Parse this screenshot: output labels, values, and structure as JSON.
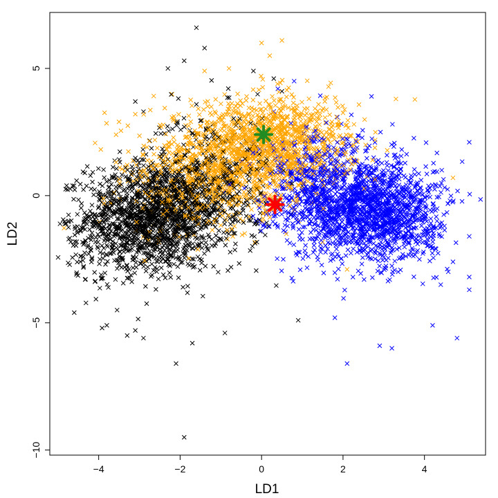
{
  "chart_data": {
    "type": "scatter",
    "title": "",
    "xlabel": "LD1",
    "ylabel": "LD2",
    "xlim": [
      -5.2,
      5.5
    ],
    "ylim": [
      -10.2,
      7.2
    ],
    "xticks": [
      -4,
      -2,
      0,
      2,
      4
    ],
    "yticks": [
      -10,
      -5,
      0,
      5
    ],
    "xtick_labels": [
      "−4",
      "−2",
      "0",
      "2",
      "4"
    ],
    "ytick_labels": [
      "−10",
      "−5",
      "0",
      "5"
    ],
    "grid": false,
    "legend": "none",
    "marker": "x",
    "series": [
      {
        "color": "#000000",
        "clusters": [
          {
            "center": [
              -2.6,
              -0.8
            ],
            "spread": [
              0.85,
              1.05
            ],
            "count": 1400
          },
          {
            "center": [
              -1.3,
              0.5
            ],
            "spread": [
              0.8,
              1.4
            ],
            "count": 450
          },
          {
            "center": [
              -3.6,
              -1.6
            ],
            "spread": [
              0.6,
              1.0
            ],
            "count": 200
          }
        ],
        "outliers": [
          [
            -1.6,
            6.6
          ],
          [
            -1.4,
            5.8
          ],
          [
            -2.3,
            5.0
          ],
          [
            -1.9,
            5.3
          ],
          [
            -0.2,
            4.9
          ],
          [
            -4.8,
            -1.1
          ],
          [
            -4.6,
            -4.6
          ],
          [
            -3.3,
            -5.5
          ],
          [
            -3.1,
            -5.3
          ],
          [
            -2.9,
            -5.6
          ],
          [
            -1.7,
            -5.8
          ],
          [
            -2.1,
            -6.6
          ],
          [
            -1.9,
            -9.5
          ],
          [
            -0.9,
            -5.4
          ],
          [
            0.9,
            -4.9
          ],
          [
            -3.1,
            3.7
          ],
          [
            -2.9,
            3.3
          ],
          [
            0.5,
            4.1
          ],
          [
            0.3,
            4.6
          ],
          [
            -3.8,
            -5.1
          ]
        ]
      },
      {
        "color": "#FFA500",
        "clusters": [
          {
            "center": [
              -0.4,
              1.6
            ],
            "spread": [
              1.15,
              1.0
            ],
            "count": 1100
          },
          {
            "center": [
              0.7,
              2.3
            ],
            "spread": [
              0.8,
              0.8
            ],
            "count": 450
          },
          {
            "center": [
              -1.6,
              0.2
            ],
            "spread": [
              0.9,
              1.0
            ],
            "count": 300
          }
        ],
        "outliers": [
          [
            0.0,
            6.0
          ],
          [
            0.5,
            6.1
          ],
          [
            0.2,
            5.5
          ],
          [
            -0.8,
            5.0
          ],
          [
            -1.4,
            4.9
          ],
          [
            3.3,
            3.8
          ],
          [
            4.7,
            0.7
          ],
          [
            -3.5,
            2.9
          ],
          [
            -3.1,
            3.2
          ],
          [
            2.1,
            -2.9
          ]
        ]
      },
      {
        "color": "#0000FF",
        "clusters": [
          {
            "center": [
              2.6,
              -0.5
            ],
            "spread": [
              0.85,
              1.0
            ],
            "count": 1300
          },
          {
            "center": [
              1.3,
              0.4
            ],
            "spread": [
              0.75,
              1.2
            ],
            "count": 500
          },
          {
            "center": [
              3.4,
              -1.2
            ],
            "spread": [
              0.6,
              0.9
            ],
            "count": 250
          }
        ],
        "outliers": [
          [
            5.1,
            2.1
          ],
          [
            5.1,
            -1.6
          ],
          [
            5.1,
            -3.2
          ],
          [
            5.1,
            -3.7
          ],
          [
            4.8,
            -5.6
          ],
          [
            3.2,
            -6.0
          ],
          [
            2.9,
            -5.9
          ],
          [
            2.1,
            -6.6
          ],
          [
            1.8,
            -4.8
          ],
          [
            4.2,
            -5.1
          ],
          [
            2.7,
            3.9
          ],
          [
            0.8,
            4.5
          ],
          [
            0.4,
            4.2
          ],
          [
            4.4,
            -3.5
          ],
          [
            4.7,
            -2.6
          ]
        ]
      }
    ],
    "highlights": [
      {
        "x": 0.05,
        "y": 2.4,
        "color": "#228B22",
        "symbol": "star"
      },
      {
        "x": 0.33,
        "y": -0.35,
        "color": "#FF0000",
        "symbol": "star"
      }
    ]
  }
}
